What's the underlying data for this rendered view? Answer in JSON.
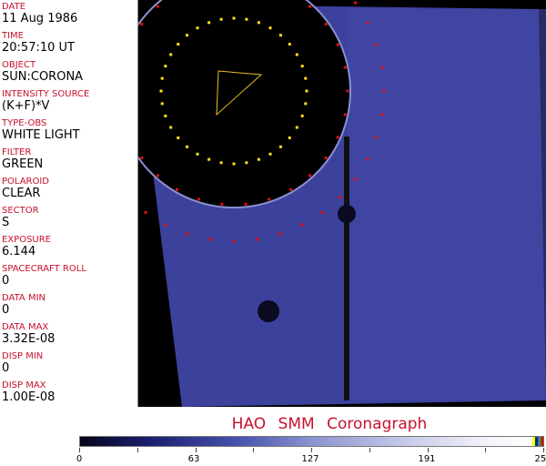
{
  "fields": [
    {
      "label": "DATE",
      "value": "11 Aug 1986"
    },
    {
      "label": "TIME",
      "value": "20:57:10 UT"
    },
    {
      "label": "OBJECT",
      "value": "SUN:CORONA"
    },
    {
      "label": "INTENSITY SOURCE",
      "value": "(K+F)*V"
    },
    {
      "label": "TYPE-OBS",
      "value": "WHITE LIGHT"
    },
    {
      "label": "FILTER",
      "value": "GREEN"
    },
    {
      "label": "POLAROID",
      "value": "CLEAR"
    },
    {
      "label": "SECTOR",
      "value": "S"
    },
    {
      "label": "EXPOSURE",
      "value": "6.144"
    },
    {
      "label": "SPACECRAFT ROLL",
      "value": "0"
    },
    {
      "label": "DATA MIN",
      "value": "0"
    },
    {
      "label": "DATA MAX",
      "value": "3.32E-08"
    },
    {
      "label": "DISP MIN",
      "value": "0"
    },
    {
      "label": "DISP MAX",
      "value": "1.00E-08"
    }
  ],
  "title": "HAO  SMM  Coronagraph",
  "colorbar": {
    "ticks": [
      "0",
      "63",
      "127",
      "191",
      "255"
    ],
    "range": [
      0,
      255
    ]
  },
  "colors": {
    "label": "#c8102e",
    "image_blue": "#3a3f9e"
  }
}
